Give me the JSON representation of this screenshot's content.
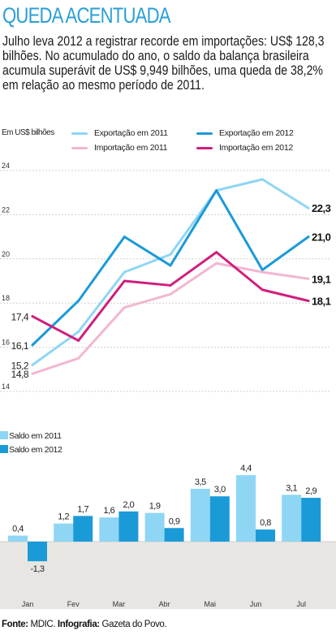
{
  "title": "QUEDA ACENTUADA",
  "subtitle": "Julho leva 2012 a registrar recorde em importações: US$ 128,3 bilhões. No acumulado do ano, o saldo da balança brasileira acumula superávit de US$ 9,949 bilhões, uma queda de 38,2% em relação ao mesmo período de 2011.",
  "unit_label": "Em US$ bilhões",
  "source": {
    "prefix": "Fonte:",
    "source_text": "MDIC.",
    "infographic_prefix": "Infografia:",
    "infographic_text": "Gazeta do Povo."
  },
  "colors": {
    "export_2011": "#8fd6f4",
    "export_2012": "#1b9ad8",
    "import_2011": "#f2b6d2",
    "import_2012": "#cf1f7d",
    "title": "#2a9fd6",
    "bar_bg": "#e8e6e3"
  },
  "chart_data": [
    {
      "type": "line",
      "categories": [
        "Jan",
        "Fev",
        "Mar",
        "Abr",
        "Mai",
        "Jun",
        "Jul"
      ],
      "ylim": [
        14,
        24
      ],
      "yticks": [
        14,
        16,
        18,
        20,
        22,
        24
      ],
      "legend_position": "top",
      "series": [
        {
          "name": "Exportação em 2011",
          "color": "#8fd6f4",
          "values": [
            15.2,
            16.7,
            19.4,
            20.2,
            23.1,
            23.6,
            22.3
          ],
          "start_label": "15,2",
          "end_label": "22,3"
        },
        {
          "name": "Exportação em 2012",
          "color": "#1b9ad8",
          "values": [
            16.1,
            18.1,
            21.0,
            19.7,
            23.1,
            19.5,
            21.0
          ],
          "start_label": "16,1",
          "end_label": "21,0"
        },
        {
          "name": "Importação em 2011",
          "color": "#f2b6d2",
          "values": [
            14.8,
            15.5,
            17.8,
            18.4,
            19.8,
            19.4,
            19.1
          ],
          "start_label": "14,8",
          "end_label": "19,1"
        },
        {
          "name": "Importação em 2012",
          "color": "#cf1f7d",
          "values": [
            17.4,
            16.3,
            19.0,
            18.8,
            20.3,
            18.6,
            18.1
          ],
          "start_label": "17,4",
          "end_label": "18,1"
        }
      ]
    },
    {
      "type": "bar",
      "categories": [
        "Jan",
        "Fev",
        "Mar",
        "Abr",
        "Mai",
        "Jun",
        "Jul"
      ],
      "ylim": [
        -1.3,
        4.4
      ],
      "legend_position": "top-left",
      "series": [
        {
          "name": "Saldo em 2011",
          "color": "#8fd6f4",
          "values": [
            0.4,
            1.2,
            1.6,
            1.9,
            3.5,
            4.4,
            3.1
          ],
          "labels": [
            "0,4",
            "1,2",
            "1,6",
            "1,9",
            "3,5",
            "4,4",
            "3,1"
          ]
        },
        {
          "name": "Saldo em 2012",
          "color": "#1b9ad8",
          "values": [
            -1.3,
            1.7,
            2.0,
            0.9,
            3.0,
            0.8,
            2.9
          ],
          "labels": [
            "-1,3",
            "1,7",
            "2,0",
            "0,9",
            "3,0",
            "0,8",
            "2,9"
          ]
        }
      ]
    }
  ]
}
